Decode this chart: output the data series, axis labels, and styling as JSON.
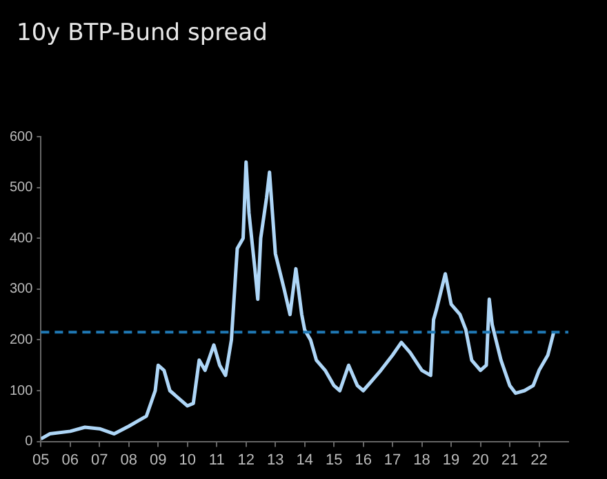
{
  "chart_data": {
    "type": "line",
    "title": "10y BTP-Bund spread",
    "x": [
      2005.0,
      2005.3,
      2006.0,
      2006.5,
      2007.0,
      2007.5,
      2008.0,
      2008.3,
      2008.6,
      2008.9,
      2009.0,
      2009.2,
      2009.4,
      2009.7,
      2010.0,
      2010.2,
      2010.4,
      2010.6,
      2010.9,
      2011.1,
      2011.3,
      2011.5,
      2011.7,
      2011.9,
      2012.0,
      2012.1,
      2012.3,
      2012.4,
      2012.5,
      2012.7,
      2012.8,
      2013.0,
      2013.3,
      2013.5,
      2013.7,
      2013.9,
      2014.0,
      2014.2,
      2014.4,
      2014.7,
      2015.0,
      2015.2,
      2015.5,
      2015.8,
      2016.0,
      2016.3,
      2016.6,
      2017.0,
      2017.3,
      2017.6,
      2018.0,
      2018.3,
      2018.4,
      2018.5,
      2018.8,
      2019.0,
      2019.3,
      2019.5,
      2019.7,
      2020.0,
      2020.2,
      2020.3,
      2020.4,
      2020.7,
      2021.0,
      2021.2,
      2021.5,
      2021.8,
      2022.0,
      2022.3,
      2022.5
    ],
    "series": [
      {
        "color": "#aed6f7",
        "values": [
          5,
          15,
          20,
          28,
          25,
          15,
          30,
          40,
          50,
          100,
          150,
          140,
          100,
          85,
          70,
          75,
          160,
          140,
          190,
          150,
          130,
          200,
          380,
          400,
          550,
          450,
          340,
          280,
          400,
          480,
          530,
          370,
          300,
          250,
          340,
          250,
          220,
          200,
          160,
          140,
          110,
          100,
          150,
          110,
          100,
          120,
          140,
          170,
          195,
          175,
          140,
          130,
          240,
          260,
          330,
          270,
          250,
          220,
          160,
          140,
          150,
          280,
          230,
          160,
          110,
          95,
          100,
          110,
          140,
          170,
          215
        ]
      }
    ],
    "xlim": [
      2005,
      2023
    ],
    "xticks": [
      {
        "value": 2005,
        "label": "05"
      },
      {
        "value": 2006,
        "label": "06"
      },
      {
        "value": 2007,
        "label": "07"
      },
      {
        "value": 2008,
        "label": "08"
      },
      {
        "value": 2009,
        "label": "09"
      },
      {
        "value": 2010,
        "label": "10"
      },
      {
        "value": 2011,
        "label": "11"
      },
      {
        "value": 2012,
        "label": "12"
      },
      {
        "value": 2013,
        "label": "13"
      },
      {
        "value": 2014,
        "label": "14"
      },
      {
        "value": 2015,
        "label": "15"
      },
      {
        "value": 2016,
        "label": "16"
      },
      {
        "value": 2017,
        "label": "17"
      },
      {
        "value": 2018,
        "label": "18"
      },
      {
        "value": 2019,
        "label": "19"
      },
      {
        "value": 2020,
        "label": "20"
      },
      {
        "value": 2021,
        "label": "21"
      },
      {
        "value": 2022,
        "label": "22"
      }
    ],
    "ylim": [
      0,
      600
    ],
    "yticks": [
      0,
      100,
      200,
      300,
      400,
      500,
      600
    ],
    "ref_lines": [
      {
        "axis": "y",
        "value": 215,
        "color": "#1f78b4",
        "line_style": "dashed"
      }
    ],
    "grid": false,
    "legend": false,
    "marker": "none",
    "line_style": "solid"
  }
}
